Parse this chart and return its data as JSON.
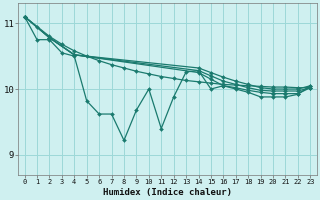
{
  "bg_color": "#cff0f0",
  "grid_color": "#9dd8d8",
  "line_color": "#1a7a6e",
  "xlabel": "Humidex (Indice chaleur)",
  "xlim": [
    -0.5,
    23.5
  ],
  "ylim": [
    8.7,
    11.3
  ],
  "yticks": [
    9,
    10,
    11
  ],
  "xticks": [
    0,
    1,
    2,
    3,
    4,
    5,
    6,
    7,
    8,
    9,
    10,
    11,
    12,
    13,
    14,
    15,
    16,
    17,
    18,
    19,
    20,
    21,
    22,
    23
  ],
  "lines": [
    {
      "x": [
        0,
        1,
        2,
        3,
        4,
        5,
        6,
        7,
        8,
        9,
        10,
        11,
        12,
        13,
        14,
        15,
        16,
        17,
        18,
        19,
        20,
        21,
        22,
        23
      ],
      "y": [
        11.1,
        10.75,
        10.75,
        10.55,
        10.5,
        9.82,
        9.62,
        9.62,
        9.22,
        9.68,
        10.0,
        9.4,
        9.88,
        10.26,
        10.28,
        10.0,
        10.05,
        10.0,
        9.95,
        9.88,
        9.88,
        9.88,
        9.92,
        10.05
      ]
    },
    {
      "x": [
        0,
        1,
        2,
        3,
        4,
        5,
        6,
        7,
        8,
        9,
        10,
        11,
        12,
        13,
        14,
        15,
        16,
        17,
        18,
        19,
        20,
        21,
        22,
        23
      ],
      "y": [
        11.1,
        10.95,
        10.8,
        10.68,
        10.58,
        10.5,
        10.43,
        10.37,
        10.32,
        10.27,
        10.23,
        10.19,
        10.16,
        10.13,
        10.11,
        10.09,
        10.07,
        10.06,
        10.05,
        10.04,
        10.03,
        10.03,
        10.02,
        10.02
      ]
    },
    {
      "x": [
        0,
        2,
        4,
        14,
        15,
        16,
        17,
        18,
        19,
        20,
        21,
        22,
        23
      ],
      "y": [
        11.1,
        10.78,
        10.52,
        10.25,
        10.15,
        10.05,
        10.02,
        9.98,
        9.95,
        9.93,
        9.93,
        9.93,
        10.02
      ]
    },
    {
      "x": [
        0,
        2,
        4,
        14,
        15,
        16,
        17,
        18,
        19,
        20,
        21,
        22,
        23
      ],
      "y": [
        11.1,
        10.78,
        10.52,
        10.28,
        10.2,
        10.12,
        10.07,
        10.02,
        9.98,
        9.97,
        9.97,
        9.97,
        10.02
      ]
    },
    {
      "x": [
        0,
        2,
        4,
        14,
        15,
        16,
        17,
        18,
        19,
        20,
        21,
        22,
        23
      ],
      "y": [
        11.1,
        10.78,
        10.52,
        10.32,
        10.25,
        10.18,
        10.12,
        10.07,
        10.02,
        10.0,
        10.0,
        10.0,
        10.05
      ]
    }
  ]
}
